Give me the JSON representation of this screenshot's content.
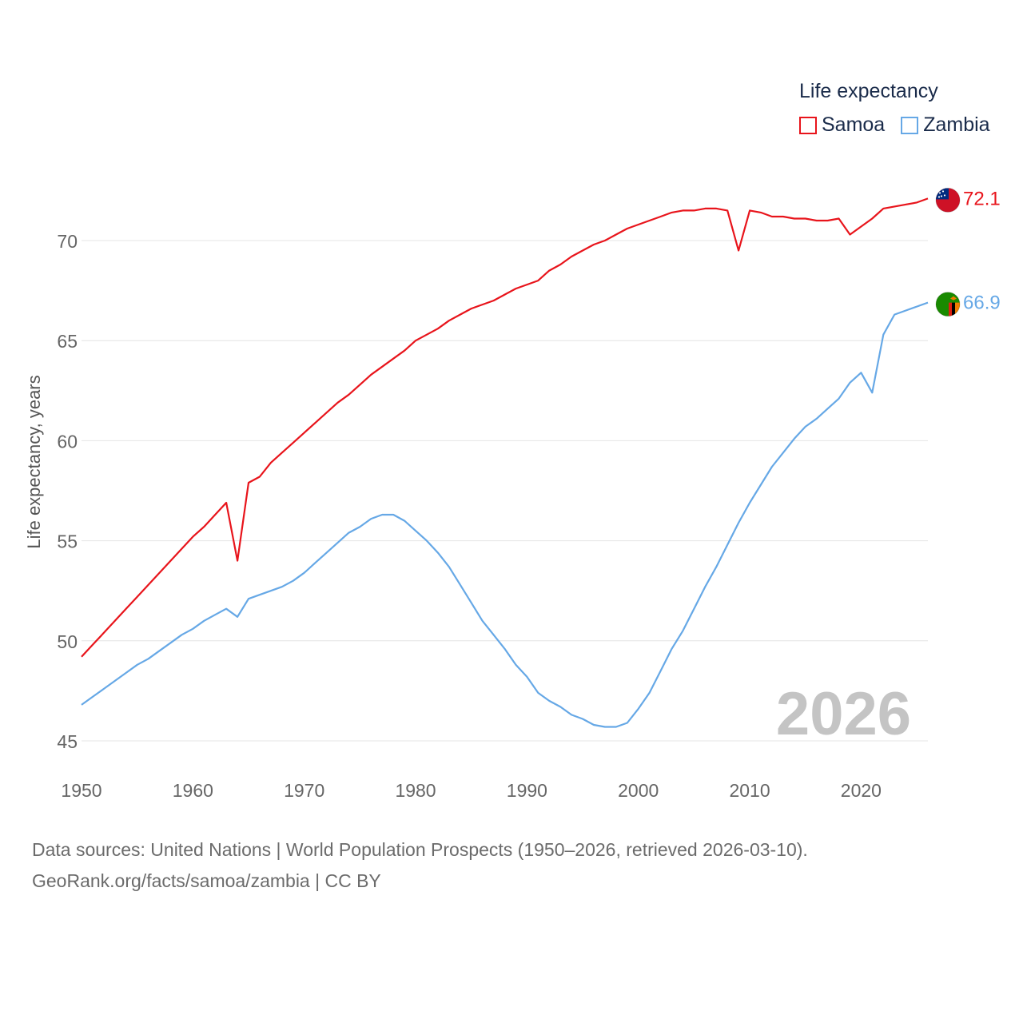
{
  "legend": {
    "title": "Life expectancy",
    "items": [
      {
        "label": "Samoa",
        "color": "#e8141b"
      },
      {
        "label": "Zambia",
        "color": "#66a8e6"
      }
    ]
  },
  "year_badge": "2026",
  "sources": {
    "line1": "Data sources: United Nations | World Population Prospects (1950–2026, retrieved 2026-03-10).",
    "line2": "GeoRank.org/facts/samoa/zambia | CC BY"
  },
  "chart_data": {
    "type": "line",
    "title": "Life expectancy",
    "xlabel": "",
    "ylabel": "Life expectancy, years",
    "xlim": [
      1950,
      2026
    ],
    "ylim": [
      45,
      73
    ],
    "xticks": [
      1950,
      1960,
      1970,
      1980,
      1990,
      2000,
      2010,
      2020
    ],
    "yticks": [
      45,
      50,
      55,
      60,
      65,
      70
    ],
    "grid": true,
    "legend_position": "top-right",
    "series": [
      {
        "name": "Samoa",
        "color": "#e8141b",
        "end_label": "72.1",
        "flag": "samoa-flag",
        "points": [
          [
            1950,
            49.2
          ],
          [
            1951,
            49.8
          ],
          [
            1952,
            50.4
          ],
          [
            1953,
            51.0
          ],
          [
            1954,
            51.6
          ],
          [
            1955,
            52.2
          ],
          [
            1956,
            52.8
          ],
          [
            1957,
            53.4
          ],
          [
            1958,
            54.0
          ],
          [
            1959,
            54.6
          ],
          [
            1960,
            55.2
          ],
          [
            1961,
            55.7
          ],
          [
            1962,
            56.3
          ],
          [
            1963,
            56.9
          ],
          [
            1964,
            54.0
          ],
          [
            1965,
            57.9
          ],
          [
            1966,
            58.2
          ],
          [
            1967,
            58.9
          ],
          [
            1968,
            59.4
          ],
          [
            1969,
            59.9
          ],
          [
            1970,
            60.4
          ],
          [
            1971,
            60.9
          ],
          [
            1972,
            61.4
          ],
          [
            1973,
            61.9
          ],
          [
            1974,
            62.3
          ],
          [
            1975,
            62.8
          ],
          [
            1976,
            63.3
          ],
          [
            1977,
            63.7
          ],
          [
            1978,
            64.1
          ],
          [
            1979,
            64.5
          ],
          [
            1980,
            65.0
          ],
          [
            1981,
            65.3
          ],
          [
            1982,
            65.6
          ],
          [
            1983,
            66.0
          ],
          [
            1984,
            66.3
          ],
          [
            1985,
            66.6
          ],
          [
            1986,
            66.8
          ],
          [
            1987,
            67.0
          ],
          [
            1988,
            67.3
          ],
          [
            1989,
            67.6
          ],
          [
            1990,
            67.8
          ],
          [
            1991,
            68.0
          ],
          [
            1992,
            68.5
          ],
          [
            1993,
            68.8
          ],
          [
            1994,
            69.2
          ],
          [
            1995,
            69.5
          ],
          [
            1996,
            69.8
          ],
          [
            1997,
            70.0
          ],
          [
            1998,
            70.3
          ],
          [
            1999,
            70.6
          ],
          [
            2000,
            70.8
          ],
          [
            2001,
            71.0
          ],
          [
            2002,
            71.2
          ],
          [
            2003,
            71.4
          ],
          [
            2004,
            71.5
          ],
          [
            2005,
            71.5
          ],
          [
            2006,
            71.6
          ],
          [
            2007,
            71.6
          ],
          [
            2008,
            71.5
          ],
          [
            2009,
            69.5
          ],
          [
            2010,
            71.5
          ],
          [
            2011,
            71.4
          ],
          [
            2012,
            71.2
          ],
          [
            2013,
            71.2
          ],
          [
            2014,
            71.1
          ],
          [
            2015,
            71.1
          ],
          [
            2016,
            71.0
          ],
          [
            2017,
            71.0
          ],
          [
            2018,
            71.1
          ],
          [
            2019,
            70.3
          ],
          [
            2020,
            70.7
          ],
          [
            2021,
            71.1
          ],
          [
            2022,
            71.6
          ],
          [
            2023,
            71.7
          ],
          [
            2024,
            71.8
          ],
          [
            2025,
            71.9
          ],
          [
            2026,
            72.1
          ]
        ]
      },
      {
        "name": "Zambia",
        "color": "#66a8e6",
        "end_label": "66.9",
        "flag": "zambia-flag",
        "points": [
          [
            1950,
            46.8
          ],
          [
            1951,
            47.2
          ],
          [
            1952,
            47.6
          ],
          [
            1953,
            48.0
          ],
          [
            1954,
            48.4
          ],
          [
            1955,
            48.8
          ],
          [
            1956,
            49.1
          ],
          [
            1957,
            49.5
          ],
          [
            1958,
            49.9
          ],
          [
            1959,
            50.3
          ],
          [
            1960,
            50.6
          ],
          [
            1961,
            51.0
          ],
          [
            1962,
            51.3
          ],
          [
            1963,
            51.6
          ],
          [
            1964,
            51.2
          ],
          [
            1965,
            52.1
          ],
          [
            1966,
            52.3
          ],
          [
            1967,
            52.5
          ],
          [
            1968,
            52.7
          ],
          [
            1969,
            53.0
          ],
          [
            1970,
            53.4
          ],
          [
            1971,
            53.9
          ],
          [
            1972,
            54.4
          ],
          [
            1973,
            54.9
          ],
          [
            1974,
            55.4
          ],
          [
            1975,
            55.7
          ],
          [
            1976,
            56.1
          ],
          [
            1977,
            56.3
          ],
          [
            1978,
            56.3
          ],
          [
            1979,
            56.0
          ],
          [
            1980,
            55.5
          ],
          [
            1981,
            55.0
          ],
          [
            1982,
            54.4
          ],
          [
            1983,
            53.7
          ],
          [
            1984,
            52.8
          ],
          [
            1985,
            51.9
          ],
          [
            1986,
            51.0
          ],
          [
            1987,
            50.3
          ],
          [
            1988,
            49.6
          ],
          [
            1989,
            48.8
          ],
          [
            1990,
            48.2
          ],
          [
            1991,
            47.4
          ],
          [
            1992,
            47.0
          ],
          [
            1993,
            46.7
          ],
          [
            1994,
            46.3
          ],
          [
            1995,
            46.1
          ],
          [
            1996,
            45.8
          ],
          [
            1997,
            45.7
          ],
          [
            1998,
            45.7
          ],
          [
            1999,
            45.9
          ],
          [
            2000,
            46.6
          ],
          [
            2001,
            47.4
          ],
          [
            2002,
            48.5
          ],
          [
            2003,
            49.6
          ],
          [
            2004,
            50.5
          ],
          [
            2005,
            51.6
          ],
          [
            2006,
            52.7
          ],
          [
            2007,
            53.7
          ],
          [
            2008,
            54.8
          ],
          [
            2009,
            55.9
          ],
          [
            2010,
            56.9
          ],
          [
            2011,
            57.8
          ],
          [
            2012,
            58.7
          ],
          [
            2013,
            59.4
          ],
          [
            2014,
            60.1
          ],
          [
            2015,
            60.7
          ],
          [
            2016,
            61.1
          ],
          [
            2017,
            61.6
          ],
          [
            2018,
            62.1
          ],
          [
            2019,
            62.9
          ],
          [
            2020,
            63.4
          ],
          [
            2021,
            62.4
          ],
          [
            2022,
            65.3
          ],
          [
            2023,
            66.3
          ],
          [
            2024,
            66.5
          ],
          [
            2025,
            66.7
          ],
          [
            2026,
            66.9
          ]
        ]
      }
    ]
  }
}
